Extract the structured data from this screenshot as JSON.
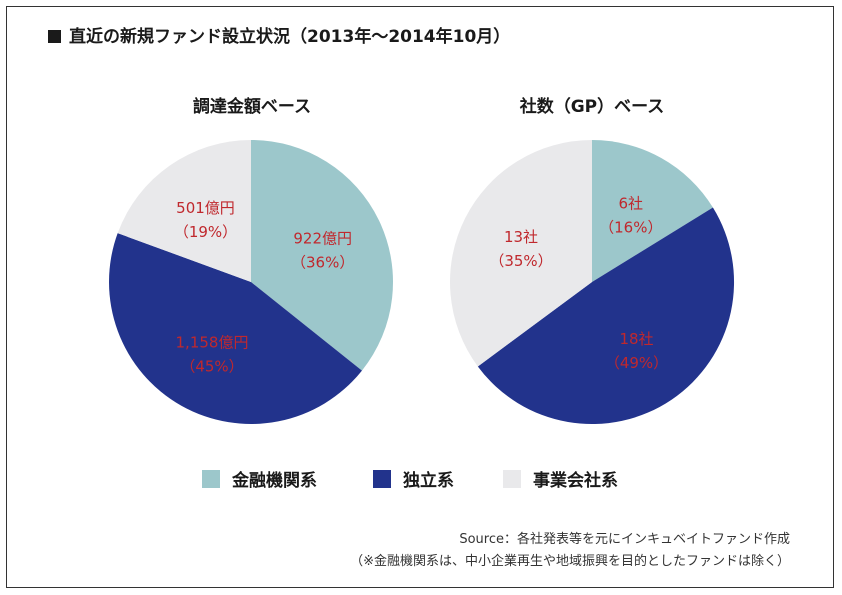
{
  "title": "直近の新規ファンド設立状況（2013年〜2014年10月）",
  "legend": [
    {
      "label": "金融機関系",
      "color": "#9cc7cb"
    },
    {
      "label": "独立系",
      "color": "#22338c"
    },
    {
      "label": "事業会社系",
      "color": "#e9e9eb"
    }
  ],
  "source": "Source：各社発表等を元にインキュベイトファンド作成",
  "note": "（※金融機関系は、中小企業再生や地域振興を目的としたファンドは除く）",
  "label_color": "#c0282d",
  "chart_data": [
    {
      "type": "pie",
      "title": "調達金額ベース",
      "slices": [
        {
          "category": "金融機関系",
          "value": 922,
          "percent": 36,
          "label": "922億円",
          "pct_label": "（36%）",
          "color": "#9cc7cb"
        },
        {
          "category": "独立系",
          "value": 1158,
          "percent": 45,
          "label": "1,158億円",
          "pct_label": "（45%）",
          "color": "#22338c"
        },
        {
          "category": "事業会社系",
          "value": 501,
          "percent": 19,
          "label": "501億円",
          "pct_label": "（19%）",
          "color": "#e9e9eb"
        }
      ]
    },
    {
      "type": "pie",
      "title": "社数（GP）ベース",
      "slices": [
        {
          "category": "金融機関系",
          "value": 6,
          "percent": 16,
          "label": "6社",
          "pct_label": "（16%）",
          "color": "#9cc7cb"
        },
        {
          "category": "独立系",
          "value": 18,
          "percent": 49,
          "label": "18社",
          "pct_label": "（49%）",
          "color": "#22338c"
        },
        {
          "category": "事業会社系",
          "value": 13,
          "percent": 35,
          "label": "13社",
          "pct_label": "（35%）",
          "color": "#e9e9eb"
        }
      ]
    }
  ]
}
